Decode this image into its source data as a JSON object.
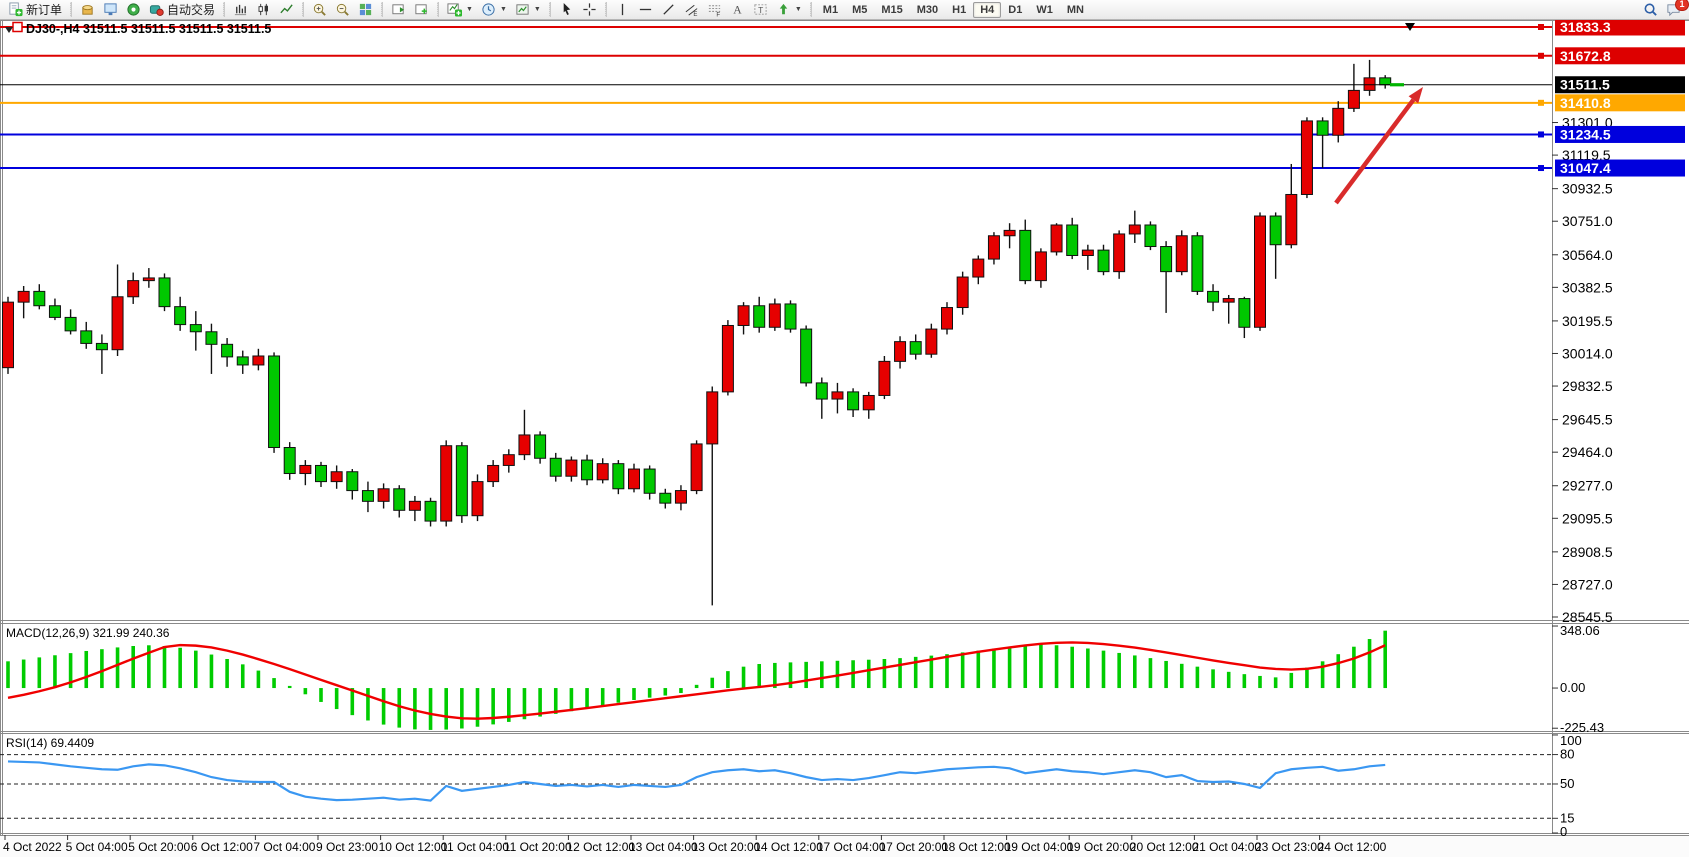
{
  "toolbar": {
    "groups": [
      {
        "items": [
          {
            "name": "new-order-button",
            "icon": "new-order-icon",
            "label": "新订单"
          }
        ]
      },
      {
        "items": [
          {
            "name": "styler-button",
            "icon": "styler-icon"
          },
          {
            "name": "market-watch-button",
            "icon": "market-watch-icon"
          },
          {
            "name": "navigator-button",
            "icon": "navigator-icon"
          },
          {
            "name": "autotrade-button",
            "icon": "autotrade-icon",
            "label": "自动交易"
          }
        ]
      },
      {
        "items": [
          {
            "name": "bar-chart-button",
            "icon": "bar-chart-icon"
          },
          {
            "name": "candlestick-button",
            "icon": "candlestick-icon"
          },
          {
            "name": "line-chart-button",
            "icon": "line-chart-icon"
          }
        ]
      },
      {
        "items": [
          {
            "name": "zoom-in-button",
            "icon": "zoom-in-icon"
          },
          {
            "name": "zoom-out-button",
            "icon": "zoom-out-icon"
          },
          {
            "name": "tile-windows-button",
            "icon": "tile-windows-icon"
          }
        ]
      },
      {
        "items": [
          {
            "name": "chart-shift-button",
            "icon": "follow-chart-icon"
          },
          {
            "name": "new-chart-button",
            "icon": "new-chart-icon"
          }
        ]
      },
      {
        "items": [
          {
            "name": "indicators-button",
            "icon": "indicators-icon",
            "dropdown": true
          },
          {
            "name": "periods-button",
            "icon": "periods-icon",
            "dropdown": true
          },
          {
            "name": "templates-button",
            "icon": "templates-icon",
            "dropdown": true
          }
        ]
      },
      {
        "items": [
          {
            "name": "cursor-button",
            "icon": "cursor-icon"
          },
          {
            "name": "crosshair-button",
            "icon": "crosshair-icon"
          }
        ]
      },
      {
        "items": [
          {
            "name": "vline-button",
            "icon": "vline-icon"
          },
          {
            "name": "hline-button",
            "icon": "hline-icon"
          },
          {
            "name": "trendline-button",
            "icon": "trendline-icon"
          },
          {
            "name": "channel-button",
            "icon": "channel-icon"
          },
          {
            "name": "fibonacci-button",
            "icon": "fibonacci-icon"
          },
          {
            "name": "text-button",
            "icon": "text-icon"
          },
          {
            "name": "text-label-button",
            "icon": "label-icon"
          },
          {
            "name": "arrows-button",
            "icon": "arrows-icon",
            "dropdown": true
          }
        ]
      },
      {
        "items": [
          {
            "name": "timeframe-m1",
            "label": "M1",
            "tf": true
          },
          {
            "name": "timeframe-m5",
            "label": "M5",
            "tf": true
          },
          {
            "name": "timeframe-m15",
            "label": "M15",
            "tf": true
          },
          {
            "name": "timeframe-m30",
            "label": "M30",
            "tf": true
          },
          {
            "name": "timeframe-h1",
            "label": "H1",
            "tf": true
          },
          {
            "name": "timeframe-h4",
            "label": "H4",
            "tf": true,
            "active": true
          },
          {
            "name": "timeframe-d1",
            "label": "D1",
            "tf": true
          },
          {
            "name": "timeframe-w1",
            "label": "W1",
            "tf": true
          },
          {
            "name": "timeframe-mn",
            "label": "MN",
            "tf": true
          }
        ]
      }
    ],
    "right": [
      {
        "name": "search-button",
        "icon": "search-icon"
      },
      {
        "name": "notifications-button",
        "icon": "chat-icon",
        "badge": "1"
      }
    ]
  },
  "chart": {
    "title": "DJ30-,H4  31511.5 31511.5 31511.5 31511.5"
  },
  "chart_data": {
    "type": "candlestick",
    "symbol": "DJ30-",
    "period": "H4",
    "current_price": 31511.5,
    "ylim": [
      28545.5,
      31833.3
    ],
    "price_ticks": [
      31301.0,
      31119.5,
      30932.5,
      30751.0,
      30564.0,
      30382.5,
      30195.5,
      30014.0,
      29832.5,
      29645.5,
      29464.0,
      29277.0,
      29095.5,
      28908.5,
      28727.0,
      28545.5
    ],
    "hlines": [
      {
        "price": 31833.3,
        "color": "#dd0000"
      },
      {
        "price": 31672.8,
        "color": "#dd0000"
      },
      {
        "price": 31410.8,
        "color": "#ffa800"
      },
      {
        "price": 31234.5,
        "color": "#0000dd"
      },
      {
        "price": 31047.4,
        "color": "#0000dd"
      }
    ],
    "time_labels": [
      "4 Oct 2022",
      "5 Oct 04:00",
      "5 Oct 20:00",
      "6 Oct 12:00",
      "7 Oct 04:00",
      "9 Oct 23:00",
      "10 Oct 12:00",
      "11 Oct 04:00",
      "11 Oct 20:00",
      "12 Oct 12:00",
      "13 Oct 04:00",
      "13 Oct 20:00",
      "14 Oct 12:00",
      "17 Oct 04:00",
      "17 Oct 20:00",
      "18 Oct 12:00",
      "19 Oct 04:00",
      "19 Oct 20:00",
      "20 Oct 12:00",
      "21 Oct 04:00",
      "23 Oct 23:00",
      "24 Oct 12:00"
    ],
    "colors": {
      "up": "#e60000",
      "down": "#00c800",
      "wick": "#111111",
      "macd_hist": "#00cc00",
      "macd_signal": "#f00000",
      "rsi": "#3a97f2",
      "arrow": "#d92b2b",
      "current": "#000000",
      "current_dash": "#00b400"
    },
    "arrow": {
      "from": [
        1336,
        203
      ],
      "to": [
        1423,
        87
      ]
    },
    "candles": [
      [
        29935,
        30330,
        29900,
        30300
      ],
      [
        30300,
        30390,
        30210,
        30360
      ],
      [
        30360,
        30400,
        30260,
        30280
      ],
      [
        30280,
        30320,
        30200,
        30215
      ],
      [
        30215,
        30260,
        30120,
        30140
      ],
      [
        30140,
        30190,
        30040,
        30070
      ],
      [
        30070,
        30120,
        29900,
        30035
      ],
      [
        30035,
        30510,
        30000,
        30330
      ],
      [
        30330,
        30465,
        30290,
        30420
      ],
      [
        30420,
        30490,
        30380,
        30435
      ],
      [
        30435,
        30460,
        30250,
        30275
      ],
      [
        30275,
        30330,
        30140,
        30175
      ],
      [
        30175,
        30250,
        30030,
        30135
      ],
      [
        30135,
        30180,
        29900,
        30065
      ],
      [
        30065,
        30100,
        29940,
        29995
      ],
      [
        29995,
        30030,
        29900,
        29950
      ],
      [
        29950,
        30040,
        29920,
        30000
      ],
      [
        30000,
        30020,
        29460,
        29490
      ],
      [
        29490,
        29520,
        29310,
        29345
      ],
      [
        29345,
        29420,
        29280,
        29390
      ],
      [
        29390,
        29410,
        29270,
        29300
      ],
      [
        29300,
        29390,
        29260,
        29355
      ],
      [
        29355,
        29370,
        29200,
        29250
      ],
      [
        29250,
        29300,
        29130,
        29190
      ],
      [
        29190,
        29290,
        29150,
        29260
      ],
      [
        29260,
        29280,
        29100,
        29140
      ],
      [
        29140,
        29220,
        29080,
        29190
      ],
      [
        29190,
        29210,
        29050,
        29080
      ],
      [
        29080,
        29530,
        29050,
        29500
      ],
      [
        29500,
        29520,
        29070,
        29110
      ],
      [
        29110,
        29340,
        29080,
        29300
      ],
      [
        29300,
        29420,
        29270,
        29390
      ],
      [
        29390,
        29480,
        29350,
        29450
      ],
      [
        29450,
        29700,
        29420,
        29560
      ],
      [
        29560,
        29580,
        29400,
        29430
      ],
      [
        29430,
        29460,
        29300,
        29330
      ],
      [
        29330,
        29440,
        29300,
        29420
      ],
      [
        29420,
        29450,
        29280,
        29310
      ],
      [
        29310,
        29430,
        29290,
        29400
      ],
      [
        29400,
        29420,
        29230,
        29260
      ],
      [
        29260,
        29400,
        29240,
        29370
      ],
      [
        29370,
        29390,
        29200,
        29235
      ],
      [
        29235,
        29260,
        29150,
        29180
      ],
      [
        29180,
        29280,
        29140,
        29250
      ],
      [
        29250,
        29530,
        29230,
        29510
      ],
      [
        29510,
        29830,
        28610,
        29800
      ],
      [
        29800,
        30200,
        29780,
        30170
      ],
      [
        30170,
        30300,
        30120,
        30280
      ],
      [
        30280,
        30330,
        30130,
        30160
      ],
      [
        30160,
        30320,
        30140,
        30290
      ],
      [
        30290,
        30310,
        30130,
        30150
      ],
      [
        30150,
        30170,
        29830,
        29850
      ],
      [
        29850,
        29880,
        29650,
        29760
      ],
      [
        29760,
        29850,
        29680,
        29800
      ],
      [
        29800,
        29820,
        29660,
        29700
      ],
      [
        29700,
        29800,
        29650,
        29780
      ],
      [
        29780,
        30000,
        29760,
        29970
      ],
      [
        29970,
        30110,
        29930,
        30080
      ],
      [
        30080,
        30120,
        29980,
        30010
      ],
      [
        30010,
        30180,
        29990,
        30150
      ],
      [
        30150,
        30300,
        30120,
        30270
      ],
      [
        30270,
        30470,
        30230,
        30440
      ],
      [
        30440,
        30560,
        30400,
        30540
      ],
      [
        30540,
        30690,
        30510,
        30670
      ],
      [
        30670,
        30740,
        30600,
        30700
      ],
      [
        30700,
        30760,
        30400,
        30420
      ],
      [
        30420,
        30600,
        30380,
        30580
      ],
      [
        30580,
        30740,
        30560,
        30730
      ],
      [
        30730,
        30770,
        30540,
        30560
      ],
      [
        30560,
        30620,
        30480,
        30590
      ],
      [
        30590,
        30620,
        30450,
        30470
      ],
      [
        30470,
        30700,
        30430,
        30680
      ],
      [
        30680,
        30810,
        30630,
        30730
      ],
      [
        30730,
        30750,
        30590,
        30610
      ],
      [
        30610,
        30640,
        30240,
        30470
      ],
      [
        30470,
        30700,
        30450,
        30670
      ],
      [
        30670,
        30690,
        30340,
        30360
      ],
      [
        30360,
        30400,
        30250,
        30300
      ],
      [
        30300,
        30340,
        30180,
        30320
      ],
      [
        30320,
        30330,
        30100,
        30160
      ],
      [
        30160,
        30800,
        30140,
        30780
      ],
      [
        30780,
        30800,
        30430,
        30620
      ],
      [
        30620,
        31070,
        30600,
        30900
      ],
      [
        30900,
        31330,
        30880,
        31310
      ],
      [
        31310,
        31330,
        31048,
        31230
      ],
      [
        31230,
        31420,
        31190,
        31380
      ],
      [
        31380,
        31628,
        31360,
        31480
      ],
      [
        31480,
        31650,
        31450,
        31550
      ],
      [
        31550,
        31565,
        31490,
        31511.5
      ]
    ],
    "macd": {
      "label": "MACD(12,26,9) 321.99 240.36",
      "axis_ticks": [
        "348.06",
        "0.00",
        "-225.43"
      ],
      "axis_values": [
        348.06,
        0,
        -225.43
      ],
      "ylim": [
        -241,
        365
      ],
      "histogram": [
        150,
        160,
        172,
        184,
        196,
        208,
        218,
        228,
        236,
        240,
        236,
        226,
        210,
        188,
        163,
        133,
        98,
        56,
        12,
        -35,
        -78,
        -118,
        -152,
        -182,
        -205,
        -222,
        -232,
        -235,
        -233,
        -227,
        -217,
        -204,
        -190,
        -175,
        -160,
        -145,
        -130,
        -113,
        -97,
        -82,
        -67,
        -54,
        -42,
        -28,
        18,
        58,
        95,
        120,
        135,
        141,
        144,
        147,
        150,
        153,
        156,
        159,
        163,
        168,
        175,
        182,
        190,
        200,
        210,
        222,
        232,
        240,
        245,
        240,
        232,
        222,
        210,
        197,
        183,
        168,
        152,
        136,
        120,
        105,
        91,
        78,
        68,
        60,
        85,
        115,
        150,
        190,
        232,
        275,
        322
      ],
      "signal": [
        -55,
        -38,
        -18,
        5,
        32,
        62,
        95,
        130,
        165,
        198,
        230,
        241,
        238,
        228,
        210,
        188,
        162,
        135,
        106,
        76,
        46,
        16,
        -14,
        -44,
        -74,
        -102,
        -126,
        -145,
        -160,
        -170,
        -172,
        -168,
        -161,
        -152,
        -143,
        -133,
        -123,
        -112,
        -101,
        -90,
        -79,
        -68,
        -57,
        -46,
        -35,
        -24,
        -13,
        -3,
        6,
        16,
        28,
        42,
        56,
        70,
        85,
        100,
        115,
        130,
        145,
        160,
        175,
        189,
        203,
        216,
        228,
        239,
        248,
        254,
        256,
        253,
        247,
        238,
        227,
        214,
        200,
        185,
        170,
        155,
        141,
        128,
        115,
        107,
        104,
        108,
        120,
        140,
        166,
        200,
        240
      ]
    },
    "rsi": {
      "label": "RSI(14) 69.4409",
      "value": 69.4409,
      "axis_ticks": [
        "100",
        "80",
        "50",
        "15",
        "0"
      ],
      "axis_values": [
        100,
        80,
        50,
        15,
        0
      ],
      "levels": [
        80,
        50,
        15
      ],
      "ylim": [
        0,
        102
      ],
      "values": [
        73,
        72.5,
        72,
        70,
        68,
        66.5,
        65,
        64.5,
        68,
        70,
        69,
        66,
        62,
        57,
        54,
        52.5,
        52,
        52,
        42,
        37,
        35,
        33.5,
        34,
        35,
        36,
        34,
        35,
        33,
        48,
        43,
        45,
        47,
        49,
        52,
        50,
        48,
        49,
        47.5,
        49,
        47,
        49,
        48,
        47,
        49,
        57,
        62,
        64,
        65,
        63,
        64,
        61,
        57,
        54,
        55,
        54,
        56,
        59,
        62,
        61,
        63,
        65,
        66,
        67,
        67.5,
        66,
        61,
        63,
        65,
        63,
        62,
        60,
        62,
        64,
        62,
        57,
        59,
        53,
        52,
        52.5,
        50,
        46,
        61,
        65,
        66.5,
        67.5,
        63.5,
        65,
        68,
        69.44
      ]
    }
  }
}
